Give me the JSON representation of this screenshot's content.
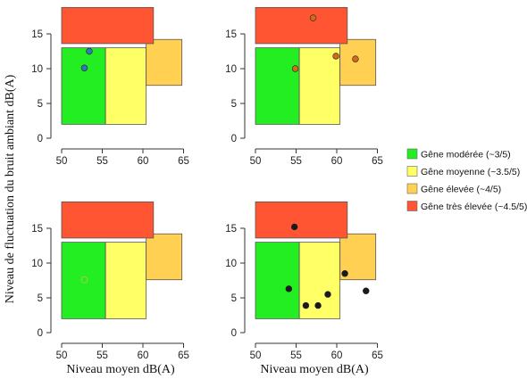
{
  "chart_data": [
    {
      "type": "scatter",
      "position": "top-left",
      "xlim": [
        50,
        65
      ],
      "ylim": [
        0,
        18
      ],
      "xticks": [
        50,
        55,
        60,
        65
      ],
      "yticks": [
        0,
        5,
        10,
        15
      ],
      "points": [
        {
          "x": 52.8,
          "y": 10.1,
          "color": "#2e78c0"
        },
        {
          "x": 53.4,
          "y": 12.5,
          "color": "#2e78c0"
        }
      ]
    },
    {
      "type": "scatter",
      "position": "top-right",
      "xlim": [
        50,
        65
      ],
      "ylim": [
        0,
        18
      ],
      "xticks": [
        50,
        55,
        60,
        65
      ],
      "yticks": [
        0,
        5,
        10,
        15
      ],
      "points": [
        {
          "x": 57.1,
          "y": 17.3,
          "color": "#d06a1c"
        },
        {
          "x": 54.9,
          "y": 10.0,
          "color": "#d06a1c"
        },
        {
          "x": 59.9,
          "y": 11.8,
          "color": "#d06a1c"
        },
        {
          "x": 62.3,
          "y": 11.4,
          "color": "#d06a1c"
        }
      ]
    },
    {
      "type": "scatter",
      "position": "bottom-left",
      "xlim": [
        50,
        65
      ],
      "ylim": [
        0,
        18
      ],
      "xticks": [
        50,
        55,
        60,
        65
      ],
      "yticks": [
        0,
        5,
        10,
        15
      ],
      "points": [
        {
          "x": 52.8,
          "y": 7.6,
          "color": "#8fd24a",
          "hollow": true
        }
      ]
    },
    {
      "type": "scatter",
      "position": "bottom-right",
      "xlim": [
        50,
        65
      ],
      "ylim": [
        0,
        18
      ],
      "xticks": [
        50,
        55,
        60,
        65
      ],
      "yticks": [
        0,
        5,
        10,
        15
      ],
      "points": [
        {
          "x": 54.8,
          "y": 15.2,
          "color": "#1a1a1a"
        },
        {
          "x": 54.1,
          "y": 6.3,
          "color": "#1a1a1a"
        },
        {
          "x": 56.2,
          "y": 3.9,
          "color": "#1a1a1a"
        },
        {
          "x": 57.7,
          "y": 3.9,
          "color": "#1a1a1a"
        },
        {
          "x": 58.9,
          "y": 5.5,
          "color": "#1a1a1a"
        },
        {
          "x": 61.0,
          "y": 8.5,
          "color": "#1a1a1a"
        },
        {
          "x": 63.6,
          "y": 6.0,
          "color": "#1a1a1a"
        }
      ]
    }
  ],
  "zones": [
    {
      "key": "moderate",
      "x": [
        50,
        55.4
      ],
      "y": [
        2,
        13
      ],
      "color": "#22ee22"
    },
    {
      "key": "medium",
      "x": [
        55.4,
        60.4
      ],
      "y": [
        2,
        13
      ],
      "color": "#ffff66"
    },
    {
      "key": "high",
      "x": [
        60.4,
        64.8
      ],
      "y": [
        7.6,
        14.2
      ],
      "color": "#ffd052"
    },
    {
      "key": "veryhigh",
      "x": [
        50,
        61.3
      ],
      "y": [
        13.6,
        18.8
      ],
      "color": "#ff5533"
    }
  ],
  "legend": [
    {
      "label": "Gêne modérée (~3/5)",
      "color": "#22ee22"
    },
    {
      "label": "Gêne moyenne (~3.5/5)",
      "color": "#ffff66"
    },
    {
      "label": "Gêne élevée (~4/5)",
      "color": "#ffd052"
    },
    {
      "label": "Gêne très élevée (~4.5/5)",
      "color": "#ff5533"
    }
  ],
  "labels": {
    "ylabel": "Niveau de fluctuation du bruit ambiant dB(A)",
    "xlabel_left": "Niveau moyen dB(A)",
    "xlabel_right": "Niveau moyen dB(A)"
  }
}
